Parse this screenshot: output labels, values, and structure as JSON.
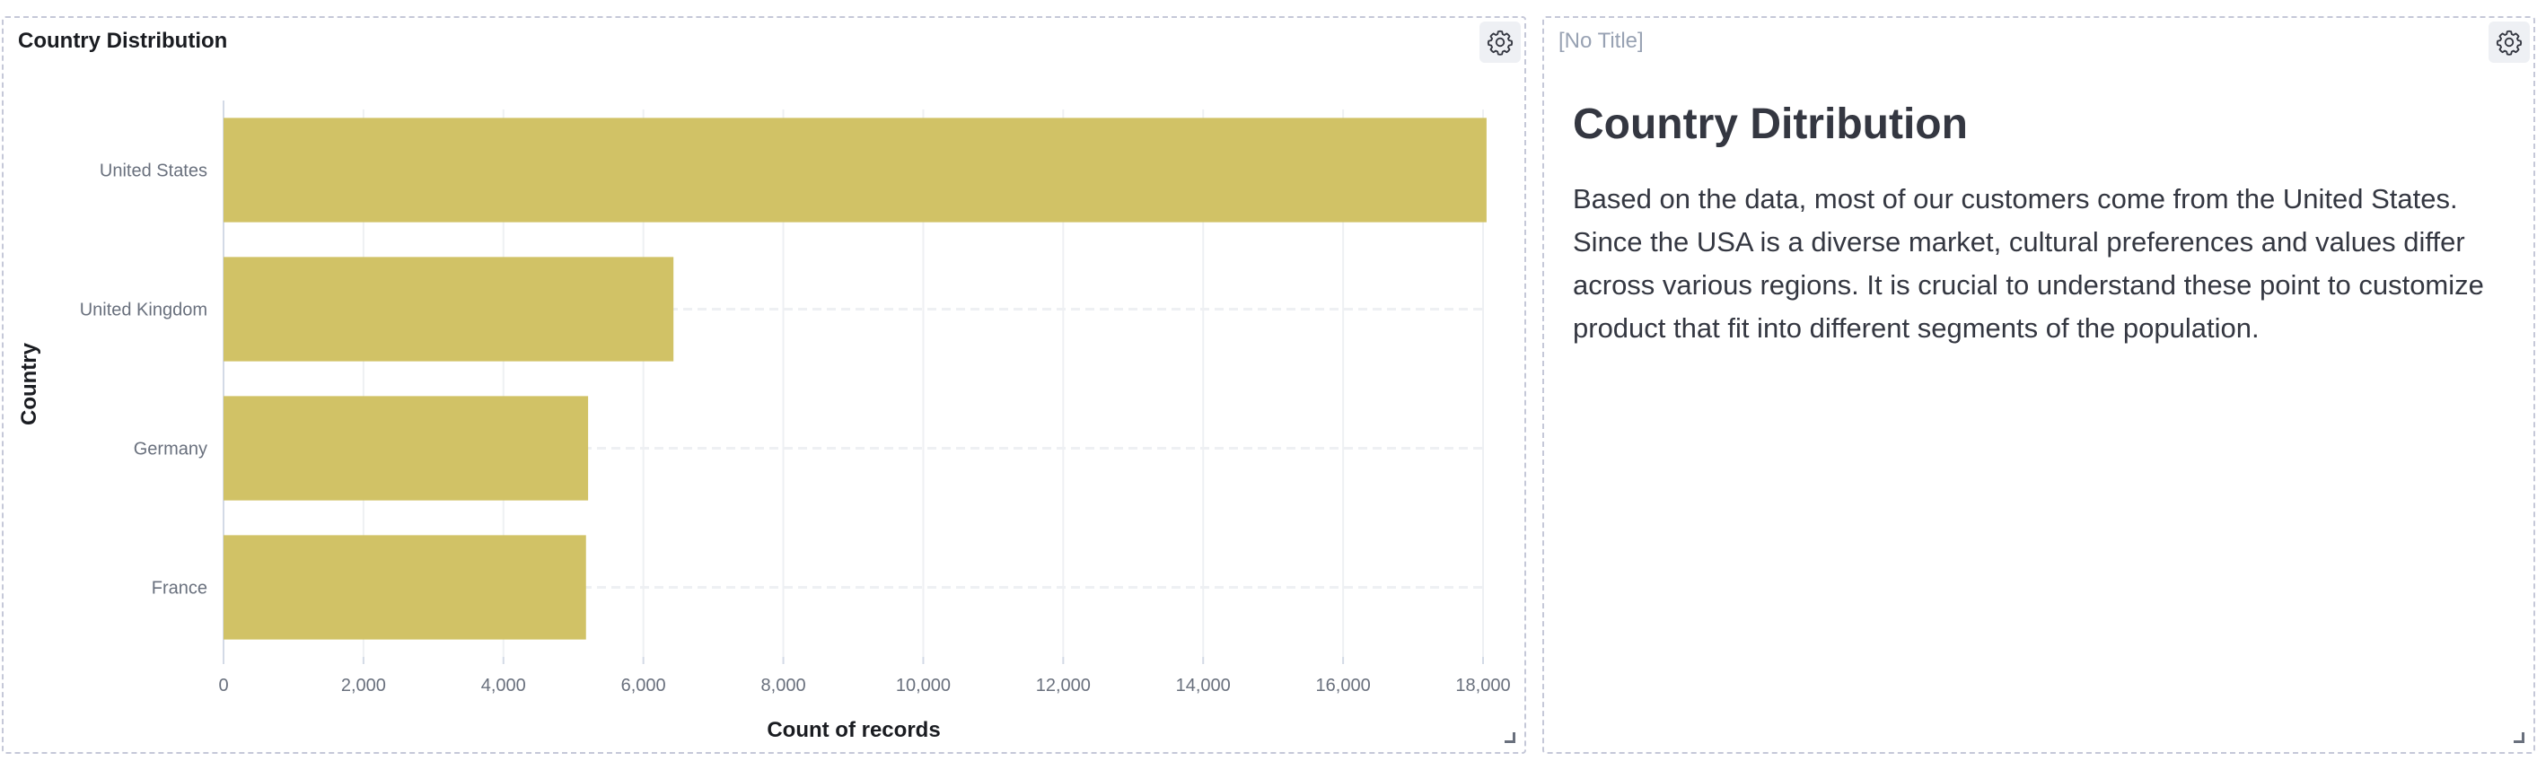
{
  "panels": [
    {
      "title": "Country Distribution"
    },
    {
      "title": "[No Title]",
      "markdown": {
        "heading": "Country Ditribution",
        "paragraph": "Based on the data, most of our customers come from the United States. Since the USA is a diverse market, cultural preferences and values differ across various regions. It is crucial to understand these point to customize product that fit into different segments of the population."
      }
    }
  ],
  "icons": {
    "settings": "gear-icon",
    "resize": "resize-handle-icon"
  },
  "colors": {
    "bar": "#d1c266",
    "grid": "#eef0f3",
    "panel_border": "#c5c8d8"
  },
  "chart_data": {
    "type": "bar",
    "orientation": "horizontal",
    "categories": [
      "United States",
      "United Kingdom",
      "Germany",
      "France"
    ],
    "values": [
      18050,
      6430,
      5210,
      5180
    ],
    "xlabel": "Count of records",
    "ylabel": "Country",
    "xlim": [
      0,
      18000
    ],
    "xticks": [
      0,
      2000,
      4000,
      6000,
      8000,
      10000,
      12000,
      14000,
      16000,
      18000
    ],
    "xtick_labels": [
      "0",
      "2,000",
      "4,000",
      "6,000",
      "8,000",
      "10,000",
      "12,000",
      "14,000",
      "16,000",
      "18,000"
    ],
    "grid": true,
    "legend": "none"
  }
}
